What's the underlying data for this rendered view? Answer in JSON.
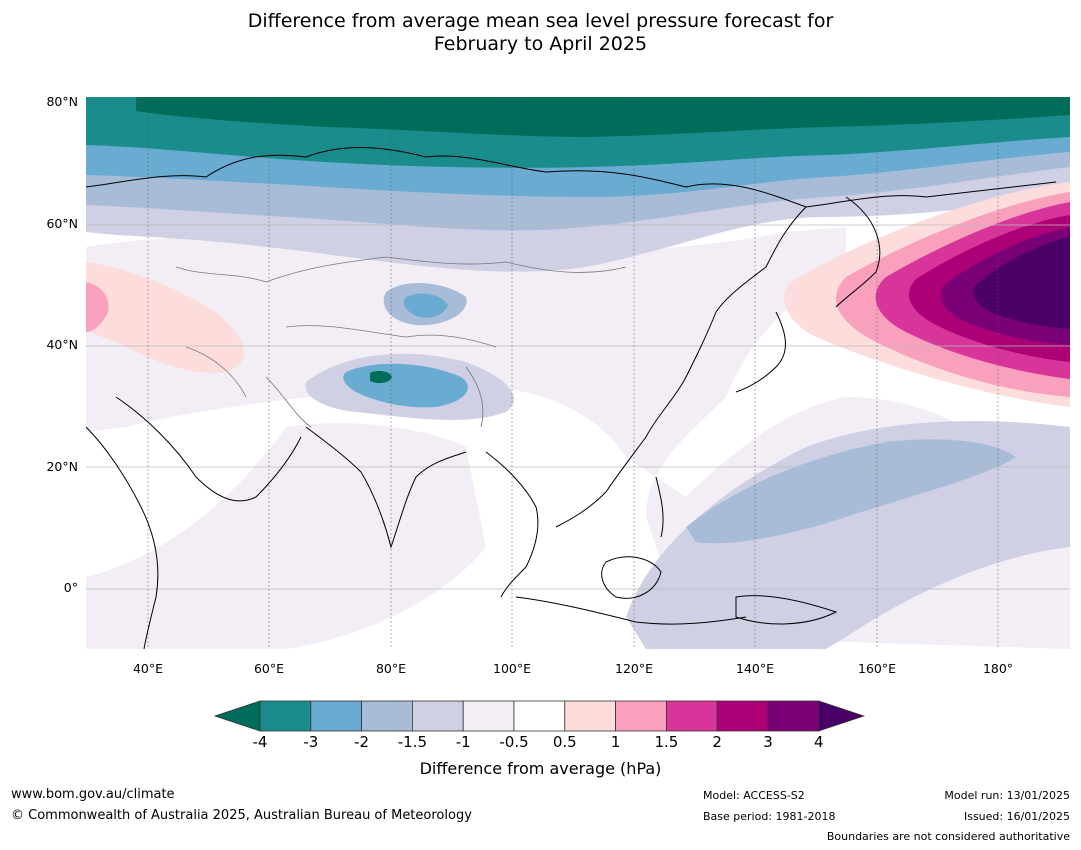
{
  "title_line1": "Difference from average mean sea level pressure forecast for",
  "title_line2": "February to April 2025",
  "map": {
    "lat_labels": [
      "80°N",
      "60°N",
      "40°N",
      "20°N",
      "0°"
    ],
    "lon_labels": [
      "40°E",
      "60°E",
      "80°E",
      "100°E",
      "120°E",
      "140°E",
      "160°E",
      "180°"
    ],
    "lat_range": [
      -10,
      81
    ],
    "lon_range": [
      30,
      192
    ]
  },
  "colorbar": {
    "ticks": [
      "-4",
      "-3",
      "-2",
      "-1.5",
      "-1",
      "-0.5",
      "0.5",
      "1",
      "1.5",
      "2",
      "3",
      "4"
    ],
    "colors": [
      "#1a8c8c",
      "#6aabd2",
      "#a8bcd8",
      "#cfd0e4",
      "#f3eef6",
      "#ffffff",
      "#fddcdc",
      "#f9a0bd",
      "#d8359a",
      "#ad0077",
      "#7a0077"
    ],
    "under_color": "#006d5b",
    "over_color": "#4a0066",
    "label": "Difference from average (hPa)"
  },
  "footer": {
    "website": "www.bom.gov.au/climate",
    "copyright": "© Commonwealth of Australia 2025, Australian Bureau of Meteorology",
    "model": "Model: ACCESS-S2",
    "base_period": "Base period: 1981-2018",
    "model_run": "Model run: 13/01/2025",
    "issued": "Issued: 16/01/2025",
    "disclaimer": "Boundaries are not considered authoritative"
  }
}
